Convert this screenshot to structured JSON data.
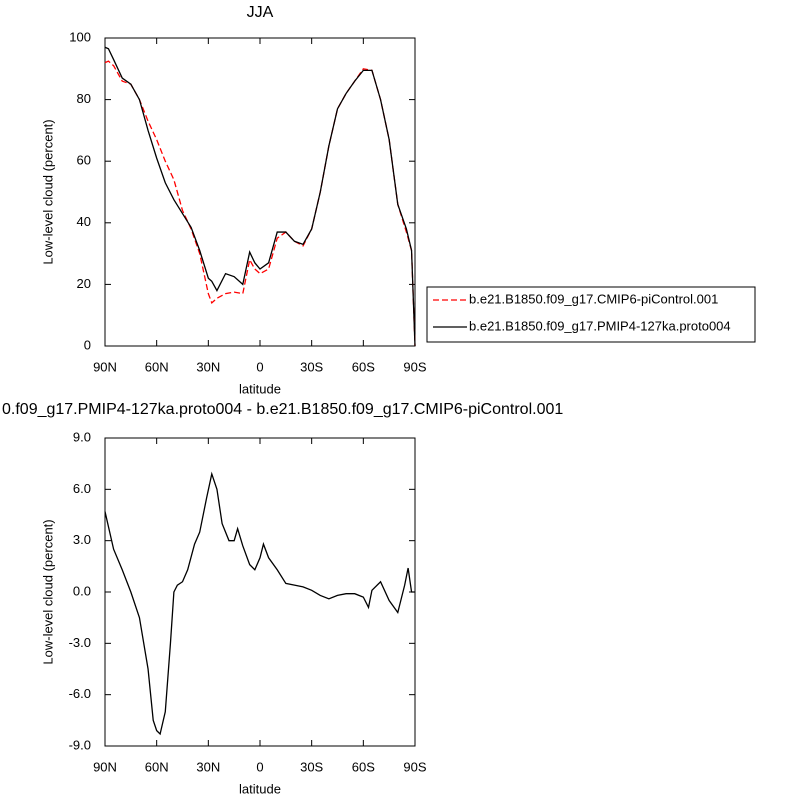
{
  "chart_data": [
    {
      "type": "line",
      "title": "JJA",
      "xlabel": "latitude",
      "ylabel": "Low-level cloud (percent)",
      "x": [
        90,
        88,
        85,
        80,
        75,
        70,
        65,
        60,
        55,
        50,
        45,
        40,
        35,
        30,
        28,
        25,
        20,
        15,
        10,
        6,
        3,
        0,
        -5,
        -10,
        -15,
        -20,
        -25,
        -30,
        -35,
        -40,
        -45,
        -50,
        -55,
        -60,
        -65,
        -70,
        -75,
        -80,
        -85,
        -88,
        -90
      ],
      "series": [
        {
          "name": "b.e21.B1850.f09_g17.CMIP6-piControl.001",
          "color": "#ff0000",
          "dashed": true,
          "values": [
            92,
            92.5,
            91,
            86,
            85,
            80,
            73,
            67,
            60,
            54,
            44,
            38,
            30,
            17,
            14,
            15.5,
            17,
            17.5,
            17,
            28,
            25,
            23.5,
            25,
            35,
            37,
            34,
            32.5,
            38,
            50,
            65,
            77,
            82,
            86,
            90,
            89.5,
            80,
            67,
            46,
            37,
            31,
            0
          ]
        },
        {
          "name": "b.e21.B1850.f09_g17.PMIP4-127ka.proto004",
          "color": "#000000",
          "dashed": false,
          "values": [
            97,
            96.5,
            93,
            87,
            85,
            80,
            70,
            61,
            53,
            47.5,
            43,
            38.5,
            31,
            22,
            21,
            18,
            23.5,
            22.5,
            20,
            30.5,
            27,
            25,
            27,
            37,
            37,
            34,
            33,
            38,
            50,
            65,
            77,
            82,
            86,
            89.5,
            89.5,
            80,
            67,
            46,
            38,
            31,
            0
          ]
        }
      ],
      "xlim": [
        90,
        -90
      ],
      "xticks": [
        {
          "value": 90,
          "label": "90N"
        },
        {
          "value": 60,
          "label": "60N"
        },
        {
          "value": 30,
          "label": "30N"
        },
        0,
        {
          "value": -30,
          "label": "30S"
        },
        {
          "value": -60,
          "label": "60S"
        },
        {
          "value": -90,
          "label": "90S"
        }
      ],
      "ylim": [
        0,
        100
      ],
      "yticks": [
        0,
        20,
        40,
        60,
        80,
        100
      ],
      "legend": "right"
    },
    {
      "type": "line",
      "title": "0.f09_g17.PMIP4-127ka.proto004 - b.e21.B1850.f09_g17.CMIP6-piControl.001",
      "xlabel": "latitude",
      "ylabel": "Low-level cloud (percent)",
      "x": [
        90,
        85,
        80,
        75,
        70,
        65,
        62,
        60,
        58,
        55,
        52,
        50,
        48,
        45,
        42,
        38,
        35,
        31,
        28,
        25,
        22,
        18,
        15,
        13,
        10,
        6,
        3,
        0,
        -2,
        -5,
        -10,
        -15,
        -20,
        -25,
        -30,
        -35,
        -40,
        -45,
        -50,
        -55,
        -60,
        -63,
        -65,
        -70,
        -75,
        -80,
        -84,
        -86,
        -88,
        -90
      ],
      "series": [
        {
          "color": "#000000",
          "dashed": false,
          "values": [
            4.7,
            2.5,
            1.3,
            0.0,
            -1.5,
            -4.5,
            -7.5,
            -8.1,
            -8.3,
            -7.0,
            -3.0,
            0.0,
            0.4,
            0.6,
            1.3,
            2.8,
            3.5,
            5.5,
            6.9,
            6.0,
            4.0,
            3.0,
            3.0,
            3.7,
            2.7,
            1.6,
            1.3,
            2.0,
            2.8,
            2.0,
            1.3,
            0.5,
            0.4,
            0.3,
            0.1,
            -0.2,
            -0.4,
            -0.2,
            -0.1,
            -0.1,
            -0.3,
            -0.9,
            0.1,
            0.6,
            -0.5,
            -1.2,
            0.4,
            1.4,
            0.0,
            0.0
          ]
        }
      ],
      "xlim": [
        90,
        -90
      ],
      "xticks": [
        {
          "value": 90,
          "label": "90N"
        },
        {
          "value": 60,
          "label": "60N"
        },
        {
          "value": 30,
          "label": "30N"
        },
        0,
        {
          "value": -30,
          "label": "30S"
        },
        {
          "value": -60,
          "label": "60S"
        },
        {
          "value": -90,
          "label": "90S"
        }
      ],
      "ylim": [
        -9,
        9
      ],
      "yticks": [
        {
          "value": -9,
          "label": "-9.0"
        },
        {
          "value": -6,
          "label": "-6.0"
        },
        {
          "value": -3,
          "label": "-3.0"
        },
        {
          "value": 0,
          "label": "0.0"
        },
        {
          "value": 3,
          "label": "3.0"
        },
        {
          "value": 6,
          "label": "6.0"
        },
        {
          "value": 9,
          "label": "9.0"
        }
      ]
    }
  ]
}
